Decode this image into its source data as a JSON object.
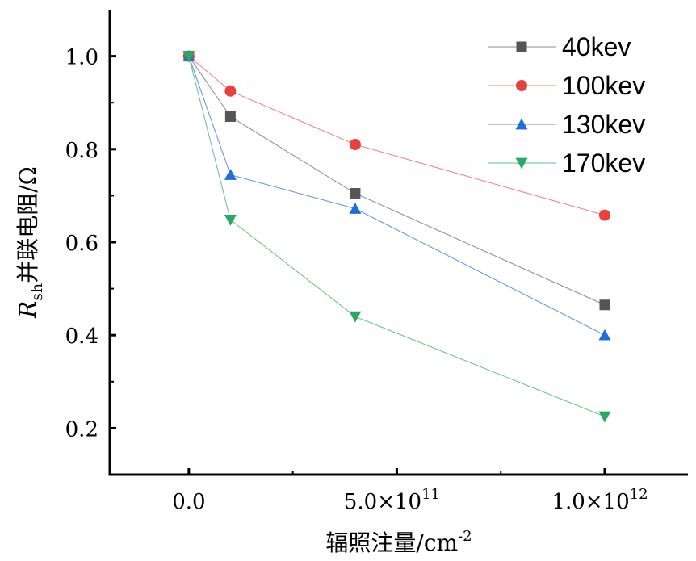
{
  "chart_data": {
    "type": "line",
    "title": "",
    "x": [
      0,
      100000000000.0,
      400000000000.0,
      1000000000000.0
    ],
    "xlim": [
      -190000000000.0,
      1200000000000.0
    ],
    "ylim": [
      0.1,
      1.1
    ],
    "xlabel": "辐照注量/cm",
    "xlabel_sup": "-2",
    "ylabel_italic": "R",
    "ylabel_sub": "sh",
    "ylabel_rest": "并联电阻/Ω",
    "x_ticks": [
      {
        "value": 0,
        "label": "0.0",
        "sup": ""
      },
      {
        "value": 500000000000.0,
        "label": "5.0×10",
        "sup": "11"
      },
      {
        "value": 1000000000000.0,
        "label": "1.0×10",
        "sup": "12"
      }
    ],
    "y_ticks": [
      {
        "value": 0.2,
        "label": "0.2"
      },
      {
        "value": 0.4,
        "label": "0.4"
      },
      {
        "value": 0.6,
        "label": "0.6"
      },
      {
        "value": 0.8,
        "label": "0.8"
      },
      {
        "value": 1.0,
        "label": "1.0"
      }
    ],
    "legend_position": "top-right",
    "series": [
      {
        "name": "40kev",
        "marker": "square",
        "color": "#555555",
        "line_color": "#8c8c8c",
        "values": [
          1.0,
          0.87,
          0.705,
          0.465
        ]
      },
      {
        "name": "100kev",
        "marker": "circle",
        "color": "#e8413c",
        "line_color": "#ef7f7c",
        "values": [
          1.0,
          0.925,
          0.81,
          0.658
        ]
      },
      {
        "name": "130kev",
        "marker": "triangle-up",
        "color": "#1f6fd6",
        "line_color": "#5b8fdf",
        "values": [
          1.0,
          0.745,
          0.672,
          0.4
        ]
      },
      {
        "name": "170kev",
        "marker": "triangle-down",
        "color": "#2aa965",
        "line_color": "#63bd8e",
        "values": [
          1.0,
          0.648,
          0.44,
          0.225
        ]
      }
    ]
  }
}
